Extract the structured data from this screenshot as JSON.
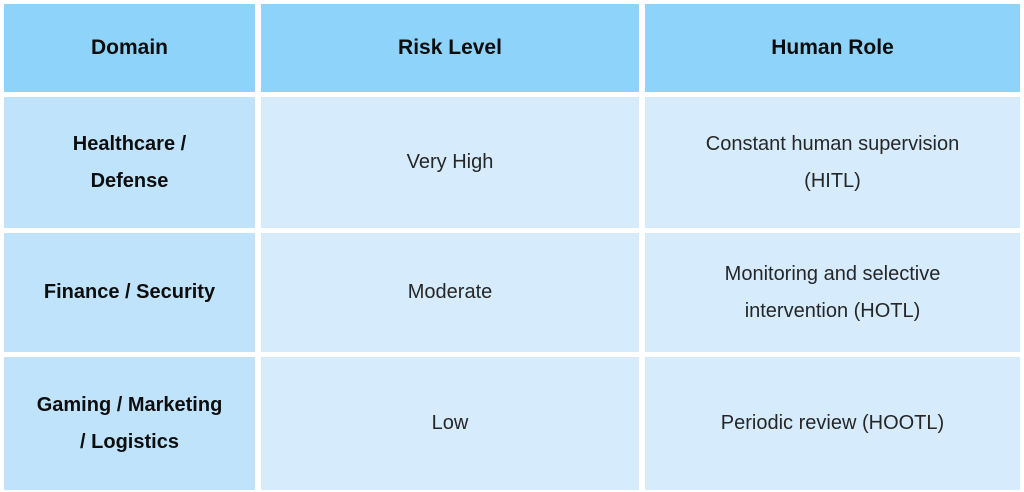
{
  "colors": {
    "header_bg": "#8ED3F9",
    "domain_col_bg": "#BEE3FB",
    "cell_bg": "#D6ECFC",
    "strong_text": "#0d0d0d",
    "body_text": "#262626",
    "gutter": "#ffffff"
  },
  "table": {
    "columns": [
      "Domain",
      "Risk Level",
      "Human Role"
    ],
    "rows": [
      {
        "domain": "Healthcare /\nDefense",
        "risk_level": "Very High",
        "human_role": "Constant human supervision\n(HITL)"
      },
      {
        "domain": "Finance / Security",
        "risk_level": "Moderate",
        "human_role": "Monitoring and selective\nintervention (HOTL)"
      },
      {
        "domain": "Gaming / Marketing\n/ Logistics",
        "risk_level": "Low",
        "human_role": "Periodic review (HOOTL)"
      }
    ]
  },
  "chart_data": {
    "type": "table",
    "title": "",
    "columns": [
      "Domain",
      "Risk Level",
      "Human Role"
    ],
    "rows": [
      [
        "Healthcare / Defense",
        "Very High",
        "Constant human supervision (HITL)"
      ],
      [
        "Finance / Security",
        "Moderate",
        "Monitoring and selective intervention (HOTL)"
      ],
      [
        "Gaming / Marketing / Logistics",
        "Low",
        "Periodic review (HOOTL)"
      ]
    ]
  }
}
